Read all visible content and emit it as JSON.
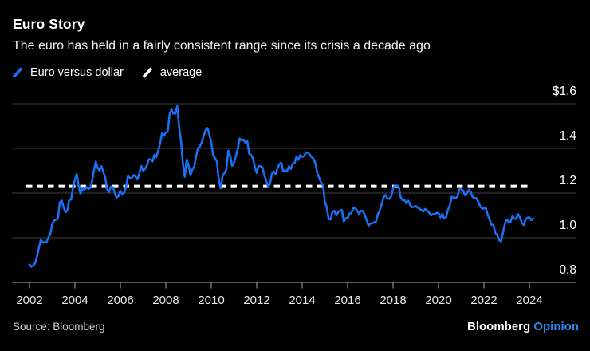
{
  "header": {
    "title": "Euro Story",
    "subtitle": "The euro has held in a fairly consistent range since its crisis a decade ago"
  },
  "legend": {
    "items": [
      {
        "label": "Euro versus dollar",
        "color": "#1b6ef0",
        "icon": "slash-icon"
      },
      {
        "label": "average",
        "color": "#ffffff",
        "icon": "slash-icon"
      }
    ]
  },
  "footer": {
    "source": "Source: Bloomberg",
    "brand": "Bloomberg",
    "brand_suffix": "Opinion"
  },
  "colors": {
    "background": "#000000",
    "text": "#ffffff",
    "grid": "#3f3f3f",
    "axis": "#a8a8a8",
    "y_tick_label": "#ffffff",
    "x_tick_label": "#e8e8e8",
    "source_text": "#cccccc",
    "opinion_blue": "#2e8af0",
    "line_blue": "#1b6ef0",
    "average_white": "#ffffff"
  },
  "chart_data": {
    "type": "line",
    "title": "Euro versus dollar exchange rate, 2002-2024",
    "x_axis": {
      "tick_years": [
        "2002",
        "2004",
        "2006",
        "2008",
        "2010",
        "2012",
        "2014",
        "2016",
        "2018",
        "2020",
        "2022",
        "2024"
      ],
      "start_year": 2002,
      "points_per_year": 12
    },
    "y_axis": {
      "min": 0.8,
      "max": 1.6,
      "tick_values": [
        1.6,
        1.4,
        1.2,
        1.0,
        0.8
      ],
      "tick_labels": [
        "$1.6",
        "1.4",
        "1.2",
        "1.0",
        "0.8"
      ]
    },
    "grid": "horizontal",
    "legend_position": "top-left",
    "average": {
      "label": "average",
      "value": 1.23,
      "style": "dashed",
      "color": "#ffffff"
    },
    "series": [
      {
        "name": "Euro versus dollar",
        "color": "#1b6ef0",
        "start_year": 2002,
        "monthly_values": [
          [
            0.88,
            0.87,
            0.876,
            0.886,
            0.917,
            0.955,
            0.992,
            0.978,
            0.981,
            0.981,
            1.001,
            1.018
          ],
          [
            1.062,
            1.077,
            1.081,
            1.085,
            1.158,
            1.166,
            1.137,
            1.114,
            1.122,
            1.169,
            1.171,
            1.229
          ],
          [
            1.261,
            1.285,
            1.226,
            1.198,
            1.222,
            1.214,
            1.227,
            1.218,
            1.222,
            1.249,
            1.299,
            1.341
          ],
          [
            1.312,
            1.301,
            1.32,
            1.294,
            1.269,
            1.216,
            1.204,
            1.229,
            1.226,
            1.202,
            1.179,
            1.186
          ],
          [
            1.21,
            1.194,
            1.202,
            1.227,
            1.277,
            1.266,
            1.268,
            1.281,
            1.273,
            1.261,
            1.288,
            1.321
          ],
          [
            1.3,
            1.308,
            1.324,
            1.351,
            1.351,
            1.342,
            1.372,
            1.362,
            1.391,
            1.423,
            1.468,
            1.456
          ],
          [
            1.472,
            1.475,
            1.552,
            1.575,
            1.556,
            1.556,
            1.59,
            1.495,
            1.437,
            1.332,
            1.273,
            1.35
          ],
          [
            1.324,
            1.28,
            1.305,
            1.319,
            1.365,
            1.402,
            1.409,
            1.427,
            1.456,
            1.482,
            1.491,
            1.461
          ],
          [
            1.427,
            1.368,
            1.357,
            1.341,
            1.254,
            1.221,
            1.277,
            1.289,
            1.307,
            1.39,
            1.366,
            1.322
          ],
          [
            1.336,
            1.365,
            1.4,
            1.444,
            1.435,
            1.439,
            1.426,
            1.434,
            1.377,
            1.371,
            1.356,
            1.318
          ],
          [
            1.29,
            1.322,
            1.32,
            1.316,
            1.28,
            1.254,
            1.228,
            1.24,
            1.286,
            1.297,
            1.283,
            1.312
          ],
          [
            1.33,
            1.336,
            1.296,
            1.302,
            1.298,
            1.32,
            1.308,
            1.331,
            1.335,
            1.364,
            1.349,
            1.37
          ],
          [
            1.362,
            1.366,
            1.382,
            1.381,
            1.373,
            1.36,
            1.354,
            1.332,
            1.29,
            1.267,
            1.247,
            1.233
          ],
          [
            1.162,
            1.135,
            1.083,
            1.082,
            1.115,
            1.121,
            1.1,
            1.114,
            1.122,
            1.124,
            1.073,
            1.088
          ],
          [
            1.086,
            1.109,
            1.11,
            1.134,
            1.131,
            1.123,
            1.106,
            1.121,
            1.121,
            1.103,
            1.08,
            1.054
          ],
          [
            1.063,
            1.065,
            1.069,
            1.072,
            1.106,
            1.123,
            1.151,
            1.181,
            1.191,
            1.176,
            1.174,
            1.184
          ],
          [
            1.22,
            1.234,
            1.234,
            1.228,
            1.181,
            1.168,
            1.169,
            1.155,
            1.166,
            1.148,
            1.137,
            1.138
          ],
          [
            1.142,
            1.135,
            1.13,
            1.123,
            1.118,
            1.129,
            1.122,
            1.113,
            1.1,
            1.106,
            1.105,
            1.111
          ],
          [
            1.11,
            1.091,
            1.107,
            1.087,
            1.092,
            1.125,
            1.146,
            1.183,
            1.179,
            1.178,
            1.184,
            1.217
          ],
          [
            1.217,
            1.21,
            1.19,
            1.198,
            1.215,
            1.205,
            1.182,
            1.177,
            1.177,
            1.16,
            1.141,
            1.13
          ],
          [
            1.131,
            1.134,
            1.102,
            1.082,
            1.058,
            1.057,
            1.022,
            1.012,
            0.99,
            0.983,
            1.02,
            1.06
          ],
          [
            1.082,
            1.071,
            1.071,
            1.096,
            1.087,
            1.084,
            1.106,
            1.091,
            1.068,
            1.057,
            1.082,
            1.09
          ],
          [
            1.091,
            1.079,
            1.087
          ]
        ]
      }
    ]
  }
}
